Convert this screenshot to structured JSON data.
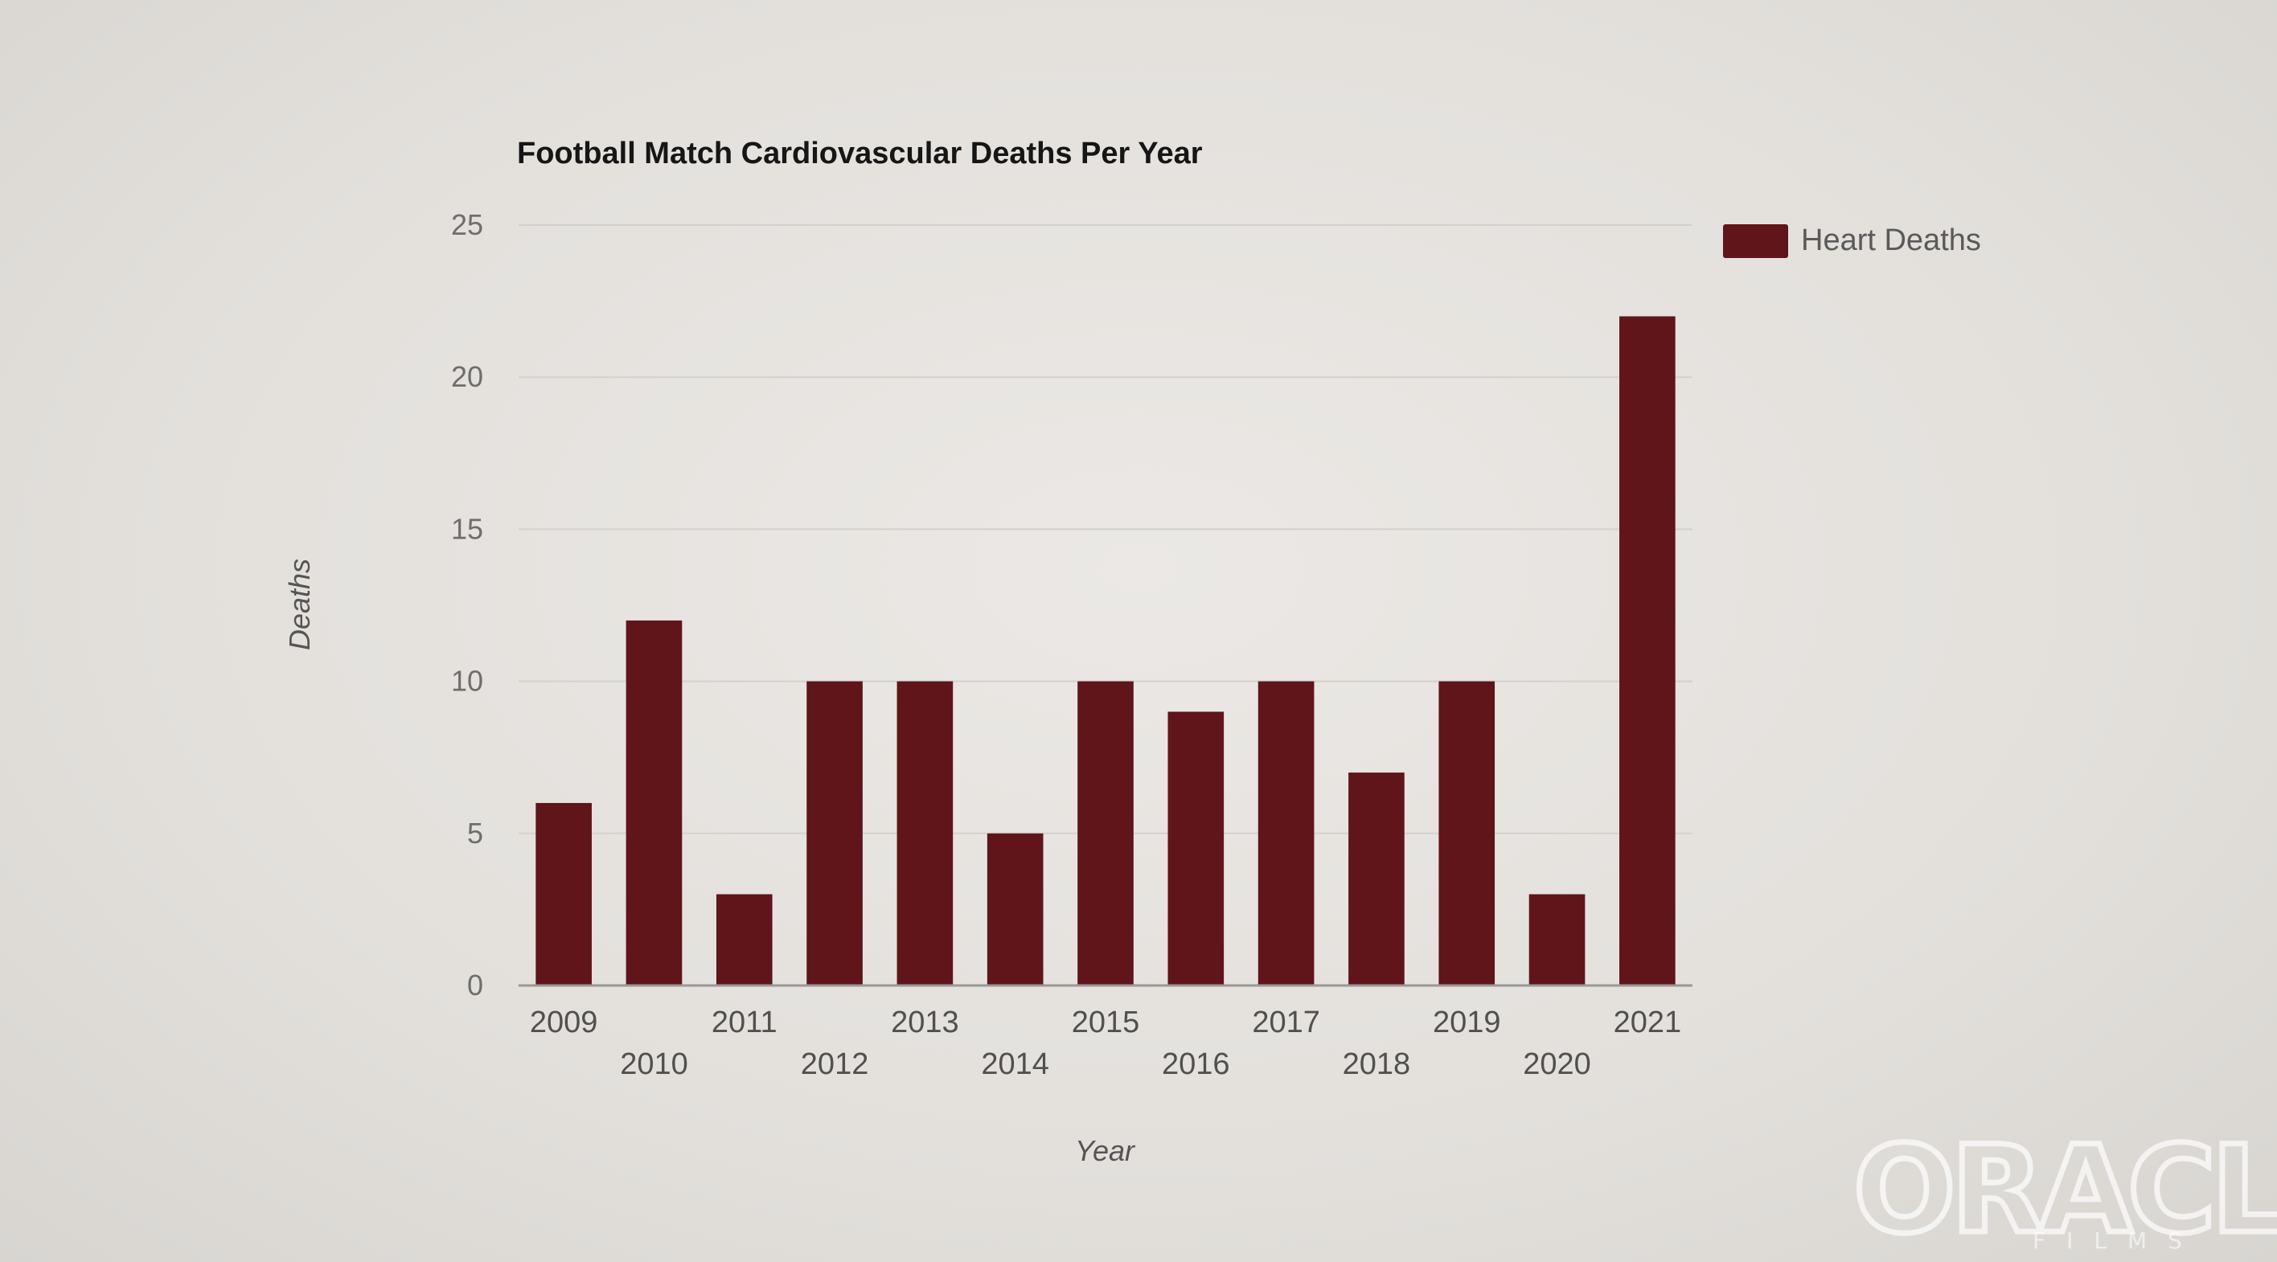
{
  "chart_data": {
    "type": "bar",
    "title": "Football Match Cardiovascular Deaths Per Year",
    "xlabel": "Year",
    "ylabel": "Deaths",
    "ylim": [
      0,
      25
    ],
    "yticks": [
      0,
      5,
      10,
      15,
      20,
      25
    ],
    "categories": [
      "2009",
      "2010",
      "2011",
      "2012",
      "2013",
      "2014",
      "2015",
      "2016",
      "2017",
      "2018",
      "2019",
      "2020",
      "2021"
    ],
    "series": [
      {
        "name": "Heart Deaths",
        "color": "#5f1519",
        "values": [
          6,
          12,
          3,
          10,
          10,
          5,
          10,
          9,
          10,
          7,
          10,
          3,
          22
        ]
      }
    ],
    "legend_position": "top-right",
    "grid": true
  },
  "watermark": {
    "text": "ORACLE",
    "subtext": "FILMS"
  }
}
